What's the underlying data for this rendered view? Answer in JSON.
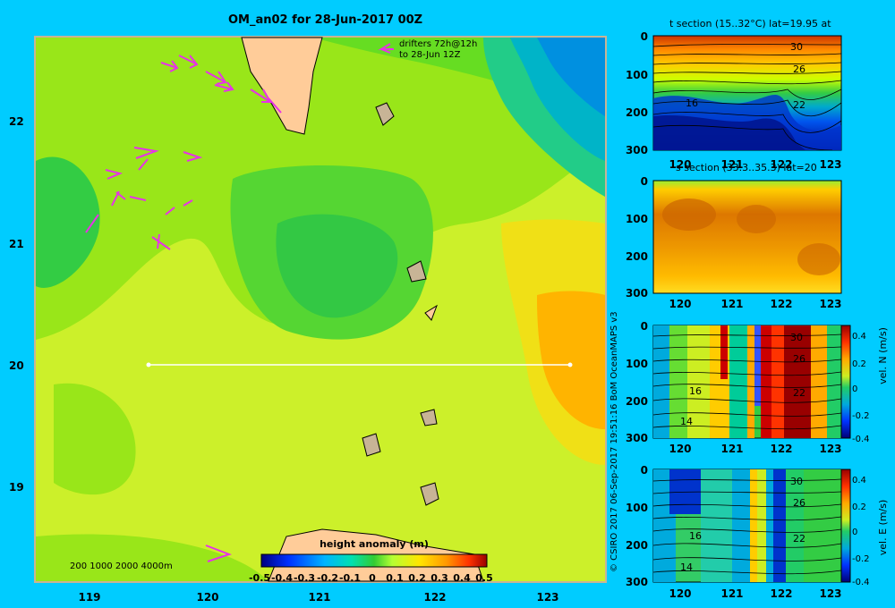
{
  "main_map": {
    "title": "OM_an02 for 28-Jun-2017 00Z",
    "drifters_label_1": "drifters 72h@12h",
    "drifters_label_2": "to 28-Jun 12Z",
    "depth_legend": "200  1000  2000  4000m",
    "colorbar_title": "height anomaly (m)",
    "colorbar_ticks": [
      "-0.5",
      "-0.4",
      "-0.3",
      "-0.2",
      "-0.1",
      "0",
      "0.1",
      "0.2",
      "0.3",
      "0.4",
      "0.5"
    ],
    "xlim": [
      118.5,
      123.5
    ],
    "ylim": [
      18.3,
      22.7
    ],
    "x_ticks": [
      "119",
      "120",
      "121",
      "122",
      "123"
    ],
    "y_ticks": [
      "22",
      "21",
      "20",
      "19"
    ],
    "section_line": {
      "lon_start": 119.5,
      "lon_end": 123.2,
      "lat": 19.95
    }
  },
  "credit": "© CSIRO 2017   06-Sep-2017 19:51:16 BoM OceanMAPS v3",
  "panels": [
    {
      "id": "t",
      "title": "t section (15..32°C) lat=19.95 at",
      "contours": [
        "30",
        "26",
        "22",
        "16"
      ],
      "colorbar": null
    },
    {
      "id": "s",
      "title": "s section (33.3..35.3) lat=20",
      "contours": [],
      "colorbar": null
    },
    {
      "id": "vn",
      "title": "",
      "contours": [
        "30",
        "26",
        "22",
        "16",
        "14"
      ],
      "colorbar": {
        "label": "vel. N (m/s)",
        "ticks": [
          "0.4",
          "0.2",
          "0",
          "-0.2",
          "-0.4"
        ]
      }
    },
    {
      "id": "ve",
      "title": "",
      "contours": [
        "30",
        "26",
        "22",
        "16",
        "14"
      ],
      "colorbar": {
        "label": "vel. E (m/s)",
        "ticks": [
          "0.4",
          "0.2",
          "0",
          "-0.2",
          "-0.4"
        ]
      }
    }
  ],
  "panel_axes": {
    "x_ticks": [
      "120",
      "121",
      "122",
      "123"
    ],
    "y_ticks": [
      "0",
      "100",
      "200",
      "300"
    ],
    "xlim": [
      119.5,
      123.2
    ],
    "ylim": [
      300,
      0
    ]
  },
  "chart_data": [
    {
      "type": "heatmap",
      "title": "OM_an02 for 28-Jun-2017 00Z",
      "xlabel": "",
      "ylabel": "",
      "colorbar_label": "height anomaly (m)",
      "value_range": [
        -0.5,
        0.5
      ],
      "xlim": [
        118.5,
        123.5
      ],
      "ylim": [
        18.3,
        22.7
      ],
      "notes": "sea surface height anomaly map; low (blue) to NE at ~123.2E 22.3N, high (orange) at ~123.3E 20.1N, lower (green) patch centered ~121.2E 20.8N"
    },
    {
      "type": "heatmap",
      "title": "t section (15..32°C) lat=19.95 at",
      "xlim": [
        119.5,
        123.2
      ],
      "ylim": [
        300,
        0
      ],
      "value_range": [
        15,
        32
      ]
    },
    {
      "type": "heatmap",
      "title": "s section (33.3..35.3) lat=20",
      "xlim": [
        119.5,
        123.2
      ],
      "ylim": [
        300,
        0
      ],
      "value_range": [
        33.3,
        35.3
      ]
    },
    {
      "type": "heatmap",
      "title": "",
      "colorbar_label": "vel. N (m/s)",
      "xlim": [
        119.5,
        123.2
      ],
      "ylim": [
        300,
        0
      ],
      "value_range": [
        -0.4,
        0.4
      ]
    },
    {
      "type": "heatmap",
      "title": "",
      "colorbar_label": "vel. E (m/s)",
      "xlim": [
        119.5,
        123.2
      ],
      "ylim": [
        300,
        0
      ],
      "value_range": [
        -0.4,
        0.4
      ]
    }
  ]
}
